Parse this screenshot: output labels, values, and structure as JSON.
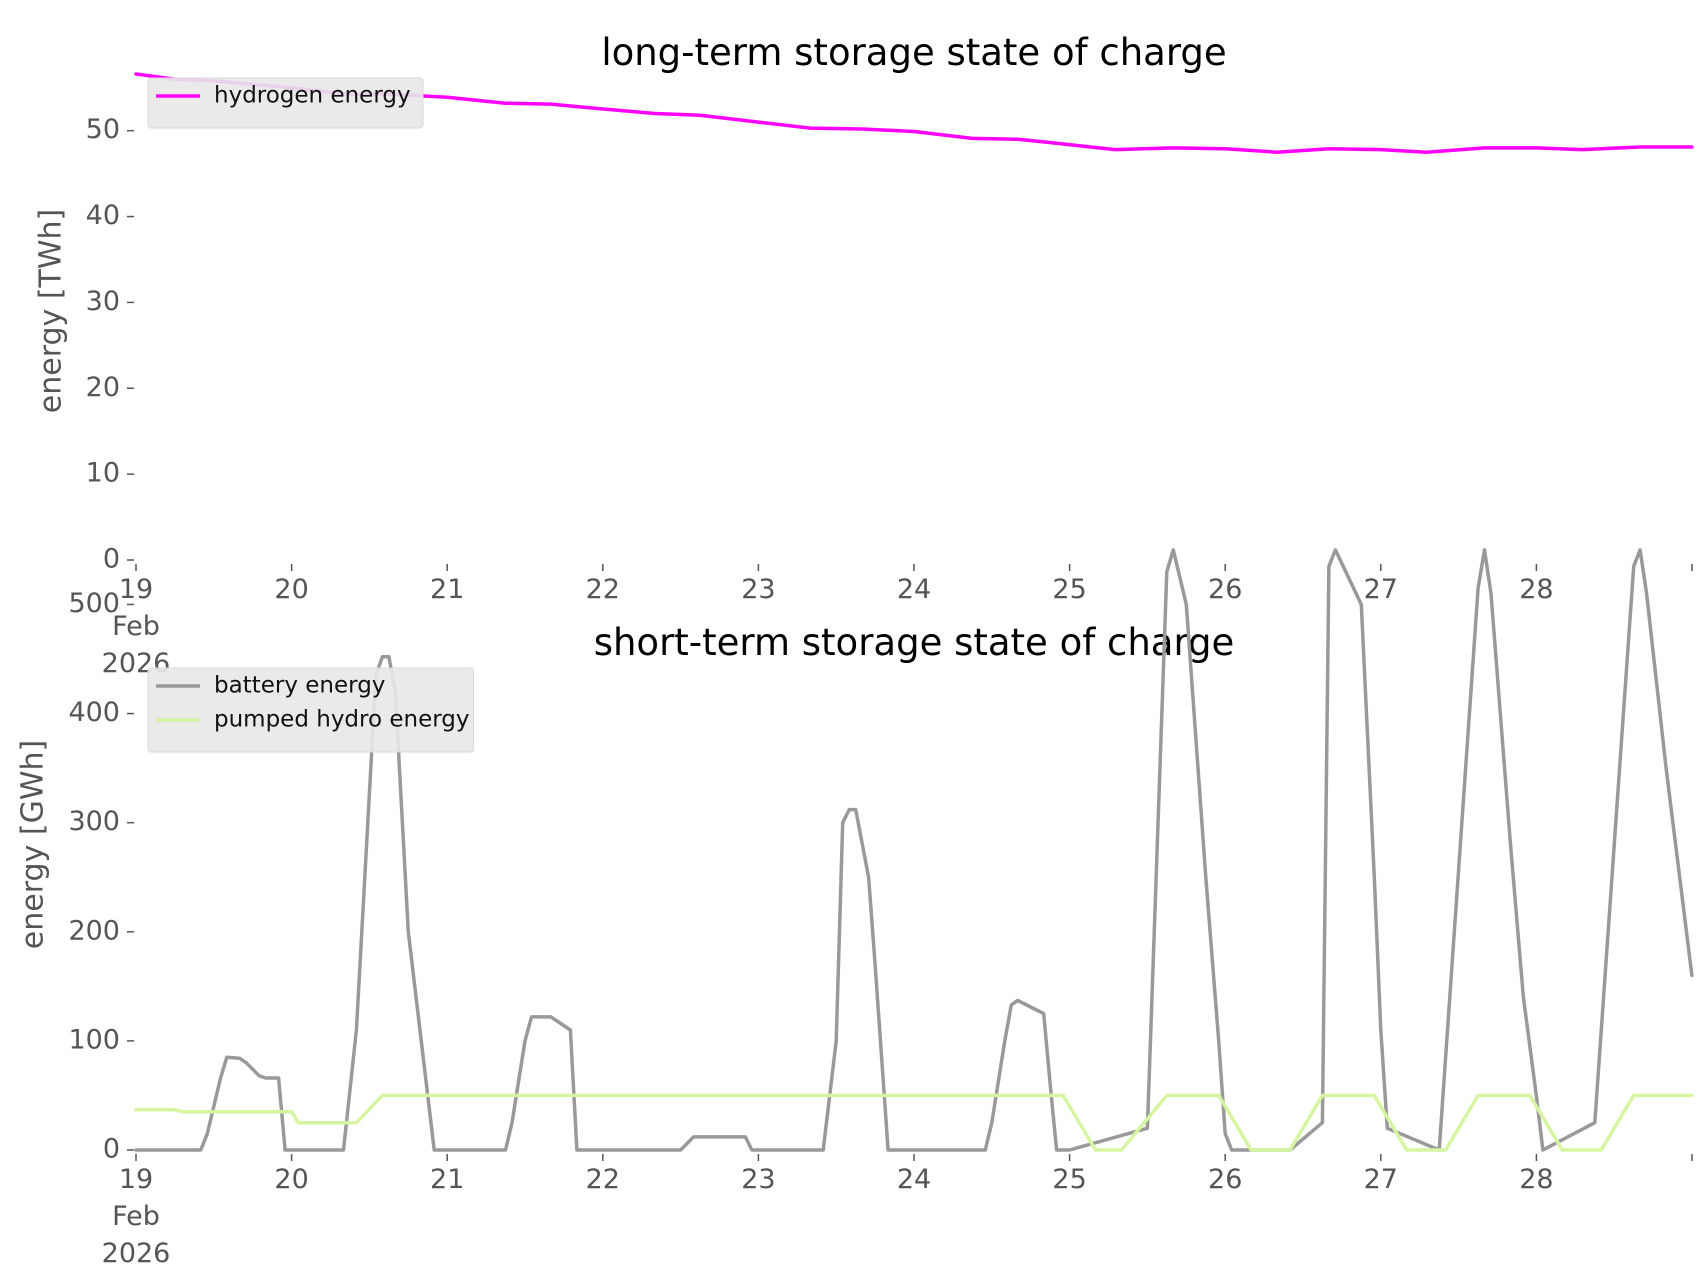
{
  "chart_data": [
    {
      "type": "line",
      "title": "long-term storage state of charge",
      "xlabel": "",
      "ylabel": "energy [TWh]",
      "x_tick_labels": [
        "19\nFeb\n2026",
        "20",
        "21",
        "22",
        "23",
        "24",
        "25",
        "26",
        "27",
        "28",
        ""
      ],
      "x_range_days": [
        19,
        29
      ],
      "ylim": [
        0,
        58
      ],
      "y_ticks": [
        0,
        10,
        20,
        30,
        40,
        50
      ],
      "grid": false,
      "legend_position": "upper-left",
      "x": [
        "2026-02-19 00:00",
        "2026-02-19 06:00",
        "2026-02-19 12:00",
        "2026-02-20 00:00",
        "2026-02-20 09:00",
        "2026-02-20 14:00",
        "2026-02-21 00:00",
        "2026-02-21 09:00",
        "2026-02-21 16:00",
        "2026-02-21 20:00",
        "2026-02-22 08:00",
        "2026-02-22 15:00",
        "2026-02-23 00:00",
        "2026-02-23 08:00",
        "2026-02-23 16:00",
        "2026-02-24 00:00",
        "2026-02-24 09:00",
        "2026-02-24 16:00",
        "2026-02-24 20:00",
        "2026-02-25 07:00",
        "2026-02-25 16:00",
        "2026-02-26 00:00",
        "2026-02-26 08:00",
        "2026-02-26 16:00",
        "2026-02-27 00:00",
        "2026-02-27 07:00",
        "2026-02-27 16:00",
        "2026-02-28 00:00",
        "2026-02-28 07:00",
        "2026-02-28 16:00",
        "2026-02-28 23:59"
      ],
      "series": [
        {
          "name": "hydrogen energy",
          "color": "#ff00ff",
          "values": [
            56.6,
            56.0,
            55.8,
            55.0,
            54.2,
            54.3,
            53.9,
            53.2,
            53.1,
            52.8,
            52.0,
            51.8,
            51.0,
            50.3,
            50.2,
            49.9,
            49.1,
            49.0,
            48.7,
            47.8,
            48.0,
            47.9,
            47.5,
            47.9,
            47.8,
            47.5,
            48.0,
            48.0,
            47.8,
            48.1,
            48.1
          ]
        }
      ]
    },
    {
      "type": "line",
      "title": "short-term storage state of charge",
      "xlabel": "",
      "ylabel": "energy [GWh]",
      "x_tick_labels": [
        "19\nFeb\n2026",
        "20",
        "21",
        "22",
        "23",
        "24",
        "25",
        "26",
        "27",
        "28",
        ""
      ],
      "x_range_days": [
        19,
        29
      ],
      "ylim": [
        0,
        560
      ],
      "y_ticks": [
        0,
        100,
        200,
        300,
        400,
        500
      ],
      "grid": false,
      "legend_position": "upper-left",
      "series": [
        {
          "name": "battery energy",
          "color": "#999999",
          "x": [
            "2026-02-19 00:00",
            "2026-02-19 10:00",
            "2026-02-19 11:00",
            "2026-02-19 13:00",
            "2026-02-19 14:00",
            "2026-02-19 16:00",
            "2026-02-19 17:00",
            "2026-02-19 19:00",
            "2026-02-19 20:00",
            "2026-02-19 22:00",
            "2026-02-19 23:00",
            "2026-02-20 00:00",
            "2026-02-20 08:00",
            "2026-02-20 10:00",
            "2026-02-20 13:00",
            "2026-02-20 14:00",
            "2026-02-20 15:00",
            "2026-02-20 16:00",
            "2026-02-20 18:00",
            "2026-02-20 22:00",
            "2026-02-20 23:00",
            "2026-02-21 09:00",
            "2026-02-21 10:00",
            "2026-02-21 12:00",
            "2026-02-21 13:00",
            "2026-02-21 16:00",
            "2026-02-21 19:00",
            "2026-02-21 20:00",
            "2026-02-21 23:00",
            "2026-02-22 12:00",
            "2026-02-22 14:00",
            "2026-02-22 22:00",
            "2026-02-22 23:00",
            "2026-02-23 09:00",
            "2026-02-23 10:00",
            "2026-02-23 12:00",
            "2026-02-23 13:00",
            "2026-02-23 14:00",
            "2026-02-23 15:00",
            "2026-02-23 17:00",
            "2026-02-23 18:00",
            "2026-02-23 20:00",
            "2026-02-23 22:00",
            "2026-02-24 11:00",
            "2026-02-24 12:00",
            "2026-02-24 14:00",
            "2026-02-24 15:00",
            "2026-02-24 16:00",
            "2026-02-24 20:00",
            "2026-02-24 21:00",
            "2026-02-24 22:00",
            "2026-02-24 23:00",
            "2026-02-25 00:00",
            "2026-02-25 12:00",
            "2026-02-25 15:00",
            "2026-02-25 16:00",
            "2026-02-25 18:00",
            "2026-02-25 21:00",
            "2026-02-25 23:00",
            "2026-02-26 00:00",
            "2026-02-26 01:00",
            "2026-02-26 10:00",
            "2026-02-26 15:00",
            "2026-02-26 16:00",
            "2026-02-26 17:00",
            "2026-02-26 21:00",
            "2026-02-26 23:00",
            "2026-02-27 00:00",
            "2026-02-27 01:00",
            "2026-02-27 09:00",
            "2026-02-27 15:00",
            "2026-02-27 16:00",
            "2026-02-27 17:00",
            "2026-02-27 20:00",
            "2026-02-27 22:00",
            "2026-02-27 23:59",
            "2026-02-28 01:00",
            "2026-02-28 09:00",
            "2026-02-28 15:00",
            "2026-02-28 16:00",
            "2026-02-28 17:00",
            "2026-02-28 20:00",
            "2026-02-28 23:59"
          ],
          "values": [
            0,
            0,
            15,
            65,
            85,
            84,
            80,
            68,
            66,
            66,
            0,
            0,
            0,
            110,
            435,
            452,
            452,
            420,
            200,
            0,
            0,
            0,
            25,
            100,
            122,
            122,
            110,
            0,
            0,
            0,
            12,
            12,
            0,
            0,
            0,
            100,
            300,
            312,
            312,
            250,
            170,
            0,
            0,
            0,
            25,
            100,
            133,
            137,
            125,
            60,
            0,
            0,
            0,
            20,
            530,
            550,
            500,
            250,
            100,
            15,
            0,
            0,
            25,
            535,
            550,
            500,
            250,
            110,
            20,
            0,
            515,
            550,
            510,
            280,
            140,
            50,
            0,
            25,
            535,
            550,
            510,
            350,
            160
          ]
        },
        {
          "name": "pumped hydro energy",
          "color": "#d6f5a0",
          "x": [
            "2026-02-19 00:00",
            "2026-02-19 06:00",
            "2026-02-19 07:00",
            "2026-02-20 00:00",
            "2026-02-20 01:00",
            "2026-02-20 10:00",
            "2026-02-20 14:00",
            "2026-02-24 23:00",
            "2026-02-25 04:00",
            "2026-02-25 08:00",
            "2026-02-25 15:00",
            "2026-02-25 23:00",
            "2026-02-26 04:00",
            "2026-02-26 10:00",
            "2026-02-26 15:00",
            "2026-02-26 23:00",
            "2026-02-27 04:00",
            "2026-02-27 10:00",
            "2026-02-27 15:00",
            "2026-02-27 23:00",
            "2026-02-28 04:00",
            "2026-02-28 10:00",
            "2026-02-28 15:00",
            "2026-02-28 23:59"
          ],
          "values": [
            37,
            37,
            35,
            35,
            25,
            25,
            50,
            50,
            0,
            0,
            50,
            50,
            0,
            0,
            50,
            50,
            0,
            0,
            50,
            50,
            0,
            0,
            50,
            50
          ]
        }
      ]
    }
  ]
}
